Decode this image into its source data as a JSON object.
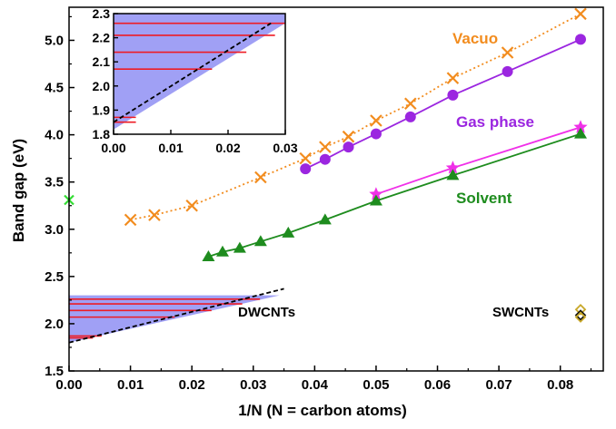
{
  "chart_data": {
    "type": "line",
    "xlabel": "1/N (N = carbon atoms)",
    "ylabel": "Band gap (eV)",
    "xlim": [
      0.0,
      0.087
    ],
    "ylim": [
      1.5,
      5.35
    ],
    "xticks": [
      "0.00",
      "0.01",
      "0.02",
      "0.03",
      "0.04",
      "0.05",
      "0.06",
      "0.07",
      "0.08"
    ],
    "yticks": [
      "1.5",
      "2.0",
      "2.5",
      "3.0",
      "3.5",
      "4.0",
      "4.5",
      "5.0"
    ],
    "grid": false,
    "series": [
      {
        "name": "Vacuo",
        "color": "#f28c1e",
        "marker": "x",
        "line": "dotted",
        "x": [
          0.01,
          0.0139,
          0.02,
          0.0312,
          0.0385,
          0.0417,
          0.0455,
          0.05,
          0.0556,
          0.0625,
          0.0714,
          0.0833
        ],
        "y": [
          3.1,
          3.15,
          3.25,
          3.55,
          3.75,
          3.87,
          3.98,
          4.15,
          4.33,
          4.6,
          4.87,
          5.28
        ]
      },
      {
        "name": "Gas phase",
        "color": "#9b26e0",
        "marker": "circle",
        "line": "solid",
        "x": [
          0.0385,
          0.0417,
          0.0455,
          0.05,
          0.0556,
          0.0625,
          0.0714,
          0.0833
        ],
        "y": [
          3.64,
          3.74,
          3.87,
          4.01,
          4.19,
          4.42,
          4.67,
          5.01
        ]
      },
      {
        "name": "",
        "color": "#f030e8",
        "marker": "star",
        "line": "solid",
        "x": [
          0.05,
          0.0625,
          0.0833
        ],
        "y": [
          3.37,
          3.65,
          4.08
        ]
      },
      {
        "name": "Solvent",
        "color": "#1e8c1e",
        "marker": "triangle",
        "line": "solid",
        "x": [
          0.0227,
          0.025,
          0.0278,
          0.0312,
          0.0357,
          0.0417,
          0.05,
          0.0625,
          0.0833
        ],
        "y": [
          2.71,
          2.76,
          2.8,
          2.87,
          2.96,
          3.1,
          3.3,
          3.57,
          4.01
        ]
      }
    ],
    "single_points": [
      {
        "x": 0.0,
        "y": 3.31,
        "marker": "x",
        "color": "#33dd33"
      }
    ],
    "swcnt_points": [
      {
        "x": 0.0833,
        "y": 2.15,
        "color": "#c8a82a"
      },
      {
        "x": 0.0833,
        "y": 2.09,
        "color": "#111111"
      },
      {
        "x": 0.0833,
        "y": 2.07,
        "color": "#c8a82a"
      }
    ],
    "annotations": [
      "Vacuo",
      "Gas phase",
      "Solvent",
      "DWCNTs",
      "SWCNTs"
    ],
    "dwcnt_region": {
      "fill": "#a0a0f5",
      "x_end": 0.0343,
      "y_top": 2.3,
      "boundary_x": [
        0.0,
        0.0343
      ],
      "boundary_y": [
        1.8,
        2.3
      ],
      "levels_y": [
        1.85,
        1.87,
        2.07,
        2.14,
        2.21,
        2.26
      ],
      "level_x_start": [
        0.0,
        0.0,
        0.0,
        0.0,
        0.0,
        0.0
      ],
      "level_x_end": [
        0.0039,
        0.0053,
        0.0172,
        0.0232,
        0.0282,
        0.0311
      ],
      "dashed_x": [
        0.0,
        0.035
      ],
      "dashed_y": [
        1.8,
        2.37
      ]
    },
    "inset": {
      "xlim": [
        0.0,
        0.03
      ],
      "ylim": [
        1.8,
        2.3
      ],
      "xticks": [
        "0.00",
        "0.01",
        "0.02",
        "0.03"
      ],
      "yticks": [
        "1.8",
        "1.9",
        "2.0",
        "2.1",
        "2.2",
        "2.3"
      ],
      "boundary_x": [
        0.0,
        0.03
      ],
      "boundary_y": [
        1.82,
        2.26
      ],
      "levels_y": [
        1.85,
        1.87,
        2.07,
        2.14,
        2.21,
        2.26
      ],
      "level_x_end": [
        0.0039,
        0.0039,
        0.0172,
        0.0232,
        0.0282,
        0.0311
      ],
      "dashed_x": [
        0.0,
        0.0275
      ],
      "dashed_y": [
        1.85,
        2.26
      ]
    },
    "colors": {
      "region_fill": "#a0a0f5",
      "level_line": "#ee1c25",
      "dashed_line": "#000000"
    }
  }
}
